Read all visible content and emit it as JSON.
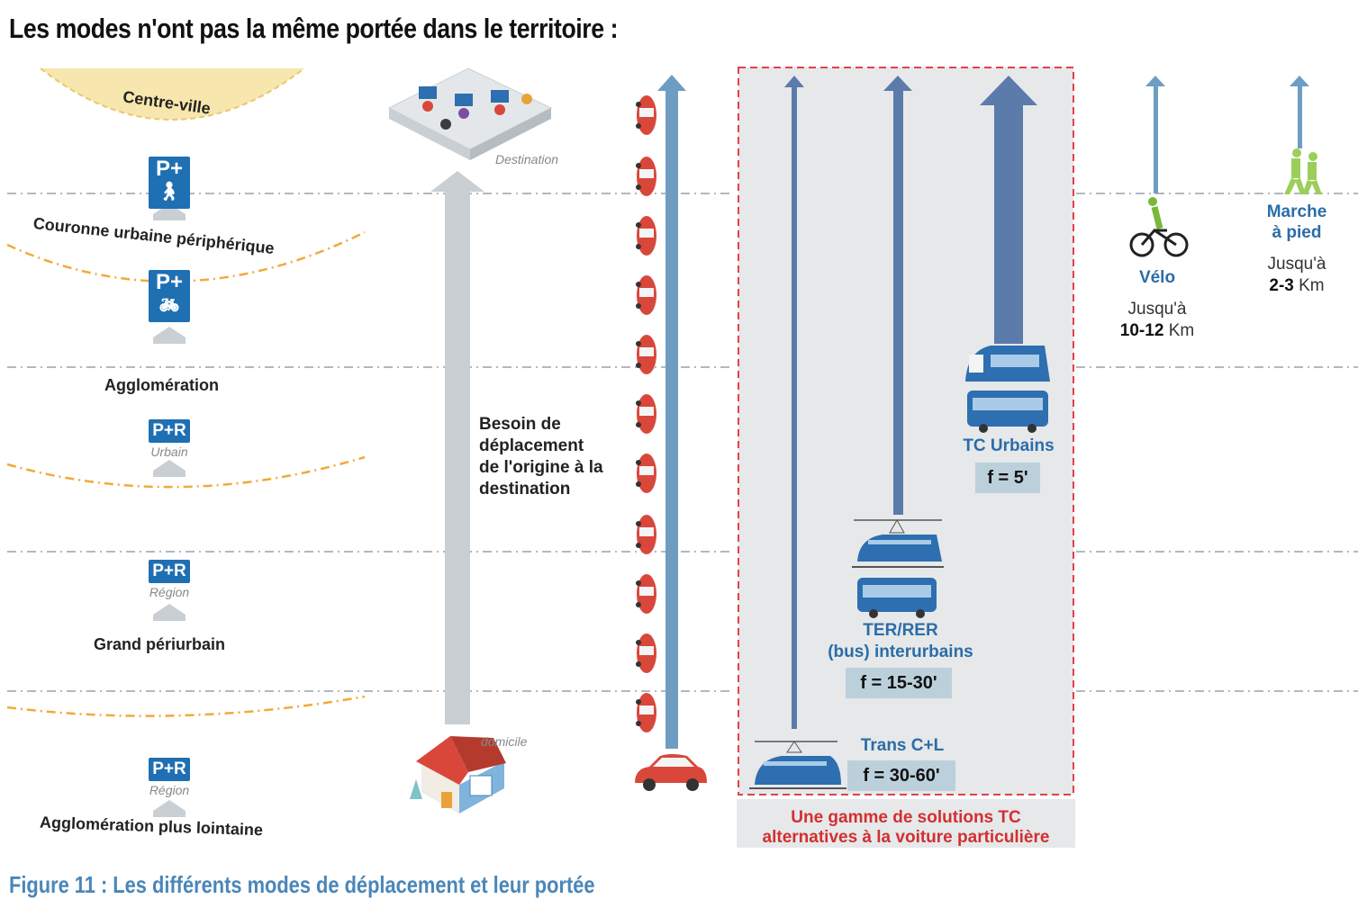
{
  "title": "Les modes n'ont pas la même portée dans le territoire :",
  "caption": "Figure 11 : Les différents modes de déplacement et leur portée",
  "zones": {
    "centre": "Centre-ville",
    "couronne": "Couronne urbaine périphérique",
    "agglo": "Agglomération",
    "grand": "Grand périurbain",
    "lointaine": "Agglomération plus lointaine"
  },
  "parkings": {
    "pr_walk": "P+",
    "pr_bike": "P+",
    "pr_label": "P+R",
    "urbain": "Urbain",
    "region": "Région",
    "region2": "Région"
  },
  "destination": "Destination",
  "domicile": "domicile",
  "besoin": "Besoin de déplacement de l'origine à la destination",
  "tc_box": {
    "urbains": {
      "name": "TC Urbains",
      "freq": "f = 5'"
    },
    "ter": {
      "name1": "TER/RER",
      "name2": "(bus) interurbains",
      "freq": "f = 15-30'"
    },
    "trans": {
      "name": "Trans C+L",
      "freq": "f = 30-60'"
    },
    "gamme1": "Une gamme de solutions TC",
    "gamme2": "alternatives à la voiture particulière"
  },
  "velo": {
    "name": "Vélo",
    "range1": "Jusqu'à",
    "range2": "10-12",
    "unit": "Km"
  },
  "marche": {
    "name1": "Marche",
    "name2": "à pied",
    "range1": "Jusqu'à",
    "range2": "2-3",
    "unit": "Km"
  },
  "colors": {
    "arrow_dark": "#5b7bab",
    "arrow_light": "#6f9dc2",
    "arrow_grey": "#c9cfd3",
    "zone_line": "#f2a93b",
    "red_car": "#d9473b",
    "dash_box": "#e0424b",
    "box_bg": "#e6e8ea"
  }
}
